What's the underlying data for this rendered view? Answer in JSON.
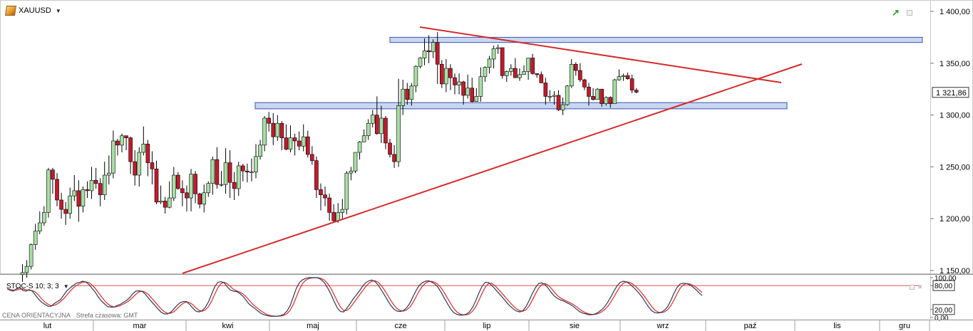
{
  "symbol": {
    "name": "XAUUSD",
    "dropdown_icon": "triangle-down"
  },
  "price_axis": {
    "ticks": [
      {
        "value": 1400,
        "label": "1 400,00"
      },
      {
        "value": 1350,
        "label": "1 350,00"
      },
      {
        "value": 1300,
        "label": "1 300,00"
      },
      {
        "value": 1250,
        "label": "1 250,00"
      },
      {
        "value": 1200,
        "label": "1 200,00"
      },
      {
        "value": 1150,
        "label": "1 150,00"
      }
    ],
    "current_price": 1321.86,
    "current_price_label": "1 321,86"
  },
  "stochastic": {
    "label": "STOC-S 10; 3; 3",
    "ticks": [
      {
        "value": 100,
        "label": "100,00"
      },
      {
        "value": 80,
        "label": "80,00"
      },
      {
        "value": 20,
        "label": "20,00"
      },
      {
        "value": 0,
        "label": "0,00"
      }
    ],
    "upper_level": 80,
    "lower_level": 20
  },
  "months": [
    "lut",
    "mar",
    "kwi",
    "maj",
    "cze",
    "lip",
    "sie",
    "wrz",
    "paź",
    "lis",
    "gru"
  ],
  "footer": {
    "price_type": "CENA ORIENTACYJNA",
    "timezone": "Strefa czasowa: GMT"
  },
  "colors": {
    "bull": "#a9dfa4",
    "bear": "#c5192d",
    "trendline": "#d42a2a",
    "zone_fill": "#c9d6f3",
    "zone_stroke": "#3b55a8",
    "stoch_k": "#2b3a56",
    "stoch_d": "#d82a2a"
  },
  "icons": {
    "trend_icon": "green-trend-arrow-icon",
    "window_icon": "window-icon",
    "close_icon": "close-icon"
  },
  "chart_data": {
    "type": "candlestick",
    "y_range": [
      1145,
      1410
    ],
    "zones": [
      {
        "low": 1370,
        "high": 1375
      },
      {
        "low": 1306,
        "high": 1312
      }
    ],
    "candles": [
      [
        1146,
        1148,
        1139,
        1156
      ],
      [
        1148,
        1154,
        1143,
        1160
      ],
      [
        1154,
        1175,
        1151,
        1176
      ],
      [
        1175,
        1188,
        1170,
        1195
      ],
      [
        1188,
        1196,
        1185,
        1207
      ],
      [
        1196,
        1206,
        1193,
        1212
      ],
      [
        1206,
        1247,
        1201,
        1249
      ],
      [
        1247,
        1238,
        1224,
        1249
      ],
      [
        1238,
        1218,
        1212,
        1244
      ],
      [
        1218,
        1209,
        1200,
        1225
      ],
      [
        1209,
        1205,
        1194,
        1216
      ],
      [
        1205,
        1222,
        1200,
        1230
      ],
      [
        1222,
        1227,
        1217,
        1242
      ],
      [
        1227,
        1212,
        1197,
        1237
      ],
      [
        1212,
        1228,
        1206,
        1231
      ],
      [
        1228,
        1227,
        1220,
        1236
      ],
      [
        1227,
        1237,
        1219,
        1250
      ],
      [
        1237,
        1234,
        1229,
        1249
      ],
      [
        1234,
        1223,
        1212,
        1239
      ],
      [
        1223,
        1242,
        1218,
        1255
      ],
      [
        1242,
        1244,
        1233,
        1261
      ],
      [
        1244,
        1275,
        1239,
        1285
      ],
      [
        1275,
        1271,
        1261,
        1277
      ],
      [
        1271,
        1280,
        1264,
        1282
      ],
      [
        1280,
        1278,
        1266,
        1280
      ],
      [
        1278,
        1255,
        1243,
        1279
      ],
      [
        1255,
        1242,
        1232,
        1266
      ],
      [
        1242,
        1264,
        1231,
        1269
      ],
      [
        1264,
        1272,
        1261,
        1289
      ],
      [
        1272,
        1254,
        1241,
        1276
      ],
      [
        1254,
        1248,
        1233,
        1265
      ],
      [
        1248,
        1216,
        1214,
        1256
      ],
      [
        1216,
        1217,
        1214,
        1232
      ],
      [
        1217,
        1211,
        1205,
        1221
      ],
      [
        1211,
        1220,
        1210,
        1236
      ],
      [
        1220,
        1242,
        1217,
        1250
      ],
      [
        1242,
        1229,
        1228,
        1245
      ],
      [
        1229,
        1225,
        1212,
        1237
      ],
      [
        1225,
        1220,
        1207,
        1232
      ],
      [
        1220,
        1243,
        1207,
        1248
      ],
      [
        1243,
        1224,
        1215,
        1246
      ],
      [
        1224,
        1214,
        1210,
        1225
      ],
      [
        1214,
        1225,
        1206,
        1233
      ],
      [
        1225,
        1234,
        1221,
        1236
      ],
      [
        1234,
        1257,
        1223,
        1260
      ],
      [
        1257,
        1233,
        1229,
        1269
      ],
      [
        1233,
        1233,
        1231,
        1246
      ],
      [
        1233,
        1254,
        1224,
        1268
      ],
      [
        1254,
        1235,
        1220,
        1266
      ],
      [
        1235,
        1229,
        1218,
        1245
      ],
      [
        1229,
        1251,
        1222,
        1255
      ],
      [
        1251,
        1246,
        1236,
        1253
      ],
      [
        1246,
        1245,
        1235,
        1253
      ],
      [
        1245,
        1245,
        1236,
        1258
      ],
      [
        1245,
        1260,
        1239,
        1272
      ],
      [
        1260,
        1271,
        1257,
        1276
      ],
      [
        1271,
        1297,
        1265,
        1299
      ],
      [
        1297,
        1292,
        1284,
        1303
      ],
      [
        1292,
        1279,
        1271,
        1302
      ],
      [
        1279,
        1292,
        1275,
        1300
      ],
      [
        1292,
        1278,
        1266,
        1294
      ],
      [
        1278,
        1267,
        1266,
        1291
      ],
      [
        1267,
        1278,
        1264,
        1290
      ],
      [
        1278,
        1275,
        1261,
        1282
      ],
      [
        1275,
        1270,
        1266,
        1284
      ],
      [
        1270,
        1279,
        1265,
        1291
      ],
      [
        1279,
        1262,
        1259,
        1285
      ],
      [
        1262,
        1256,
        1252,
        1270
      ],
      [
        1256,
        1228,
        1220,
        1260
      ],
      [
        1228,
        1223,
        1208,
        1234
      ],
      [
        1223,
        1220,
        1212,
        1231
      ],
      [
        1220,
        1206,
        1198,
        1224
      ],
      [
        1206,
        1198,
        1197,
        1214
      ],
      [
        1198,
        1206,
        1196,
        1215
      ],
      [
        1206,
        1209,
        1200,
        1219
      ],
      [
        1209,
        1244,
        1204,
        1246
      ],
      [
        1244,
        1246,
        1237,
        1250
      ],
      [
        1246,
        1264,
        1244,
        1264
      ],
      [
        1264,
        1274,
        1257,
        1275
      ],
      [
        1274,
        1280,
        1274,
        1286
      ],
      [
        1280,
        1292,
        1276,
        1296
      ],
      [
        1292,
        1300,
        1288,
        1305
      ],
      [
        1300,
        1282,
        1281,
        1318
      ],
      [
        1282,
        1297,
        1273,
        1309
      ],
      [
        1297,
        1273,
        1267,
        1299
      ],
      [
        1273,
        1262,
        1259,
        1277
      ],
      [
        1262,
        1255,
        1249,
        1271
      ],
      [
        1255,
        1309,
        1250,
        1335
      ],
      [
        1309,
        1325,
        1300,
        1334
      ],
      [
        1325,
        1315,
        1310,
        1331
      ],
      [
        1315,
        1328,
        1309,
        1331
      ],
      [
        1328,
        1347,
        1322,
        1348
      ],
      [
        1347,
        1355,
        1345,
        1356
      ],
      [
        1355,
        1362,
        1348,
        1374
      ],
      [
        1362,
        1361,
        1350,
        1377
      ],
      [
        1361,
        1370,
        1355,
        1373
      ],
      [
        1370,
        1349,
        1330,
        1380
      ],
      [
        1349,
        1330,
        1326,
        1353
      ],
      [
        1330,
        1345,
        1322,
        1354
      ],
      [
        1345,
        1336,
        1324,
        1349
      ],
      [
        1336,
        1329,
        1320,
        1340
      ],
      [
        1329,
        1332,
        1320,
        1340
      ],
      [
        1332,
        1319,
        1310,
        1333
      ],
      [
        1319,
        1326,
        1316,
        1339
      ],
      [
        1326,
        1313,
        1312,
        1336
      ],
      [
        1313,
        1318,
        1313,
        1326
      ],
      [
        1318,
        1337,
        1313,
        1346
      ],
      [
        1337,
        1346,
        1332,
        1347
      ],
      [
        1346,
        1354,
        1340,
        1357
      ],
      [
        1354,
        1364,
        1345,
        1367
      ],
      [
        1364,
        1365,
        1359,
        1368
      ],
      [
        1365,
        1338,
        1335,
        1365
      ],
      [
        1338,
        1342,
        1332,
        1343
      ],
      [
        1342,
        1345,
        1338,
        1349
      ],
      [
        1345,
        1336,
        1336,
        1355
      ],
      [
        1336,
        1339,
        1333,
        1345
      ],
      [
        1339,
        1342,
        1339,
        1348
      ],
      [
        1342,
        1355,
        1334,
        1355
      ],
      [
        1355,
        1340,
        1339,
        1359
      ],
      [
        1340,
        1339,
        1336,
        1340
      ],
      [
        1339,
        1331,
        1331,
        1342
      ],
      [
        1331,
        1318,
        1310,
        1336
      ],
      [
        1318,
        1318,
        1313,
        1324
      ],
      [
        1318,
        1319,
        1310,
        1323
      ],
      [
        1319,
        1305,
        1304,
        1324
      ],
      [
        1305,
        1310,
        1300,
        1317
      ],
      [
        1310,
        1328,
        1309,
        1329
      ],
      [
        1328,
        1349,
        1326,
        1354
      ],
      [
        1349,
        1343,
        1338,
        1351
      ],
      [
        1343,
        1334,
        1332,
        1350
      ],
      [
        1334,
        1327,
        1324,
        1335
      ],
      [
        1327,
        1318,
        1309,
        1331
      ],
      [
        1318,
        1315,
        1314,
        1326
      ],
      [
        1315,
        1325,
        1315,
        1326
      ],
      [
        1325,
        1311,
        1308,
        1325
      ],
      [
        1311,
        1317,
        1309,
        1318
      ],
      [
        1317,
        1311,
        1307,
        1318
      ],
      [
        1311,
        1334,
        1311,
        1335
      ],
      [
        1334,
        1337,
        1333,
        1344
      ],
      [
        1337,
        1338,
        1333,
        1340
      ],
      [
        1338,
        1335,
        1334,
        1341
      ],
      [
        1335,
        1324,
        1321,
        1339
      ],
      [
        1324,
        1322,
        1321,
        1326
      ]
    ],
    "stoch_k": [
      72,
      68,
      66,
      72,
      75,
      68,
      66,
      70,
      66,
      56,
      46,
      38,
      33,
      28,
      28,
      35,
      40,
      45,
      56,
      67,
      74,
      80,
      86,
      88,
      91,
      89,
      83,
      73,
      64,
      51,
      41,
      34,
      27,
      26,
      26,
      30,
      33,
      38,
      43,
      50,
      60,
      66,
      67,
      65,
      58,
      48,
      39,
      30,
      21,
      13,
      9,
      9,
      13,
      21,
      30,
      37,
      40,
      40,
      33,
      24,
      16,
      14,
      17,
      25,
      39,
      58,
      77,
      88,
      90,
      87,
      77,
      69,
      66,
      65,
      60,
      53,
      43,
      33,
      27,
      21,
      15,
      9,
      6,
      4,
      3,
      3,
      3,
      5,
      8,
      16,
      30,
      52,
      74,
      88,
      95,
      98,
      100,
      100,
      100,
      99,
      94,
      86,
      73,
      58,
      40,
      24,
      15,
      14,
      23,
      34,
      46,
      56,
      66,
      78,
      87,
      92,
      94,
      90,
      81,
      69,
      56,
      43,
      30,
      21,
      16,
      15,
      17,
      24,
      35,
      51,
      67,
      80,
      87,
      91,
      92,
      89,
      84,
      76,
      63,
      49,
      35,
      22,
      12,
      8,
      6,
      6,
      8,
      14,
      25,
      42,
      61,
      78,
      88,
      88,
      81,
      73,
      64,
      55,
      46,
      36,
      28,
      21,
      16,
      14,
      17,
      27,
      43,
      60,
      75,
      85,
      87,
      83,
      74,
      63,
      54,
      48,
      44,
      41,
      37,
      33,
      28,
      21,
      15,
      11,
      9,
      7,
      7,
      9,
      13,
      19,
      27,
      38,
      52,
      67,
      80,
      88,
      91,
      89,
      84,
      77,
      69,
      60,
      50,
      38,
      26,
      17,
      12,
      11,
      13,
      18,
      27,
      42,
      60,
      75,
      84,
      86,
      85,
      82,
      77,
      70,
      62,
      55
    ]
  }
}
